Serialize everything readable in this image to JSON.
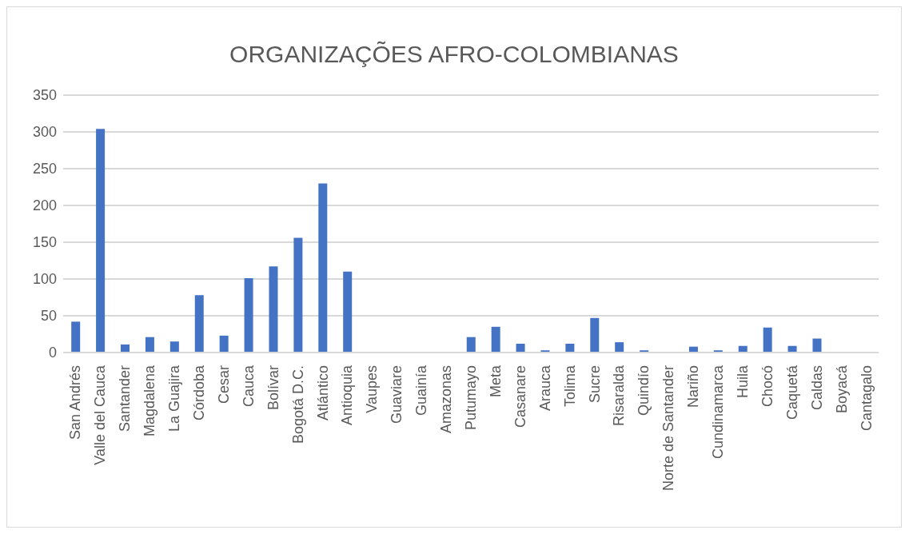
{
  "chart_data": {
    "type": "bar",
    "title": "ORGANIZAÇÕES AFRO-COLOMBIANAS",
    "categories": [
      "San Andrés",
      "Valle del Cauca",
      "Santander",
      "Magdalena",
      "La Guajira",
      "Córdoba",
      "Cesar",
      "Cauca",
      "Bolívar",
      "Bogotá D.C.",
      "Atlántico",
      "Antioquia",
      "Vaupes",
      "Guaviare",
      "Guainía",
      "Amazonas",
      "Putumayo",
      "Meta",
      "Casanare",
      "Arauca",
      "Tolima",
      "Sucre",
      "Risaralda",
      "Quindío",
      "Norte de Santander",
      "Nariño",
      "Cundinamarca",
      "Huila",
      "Chocó",
      "Caquetá",
      "Caldas",
      "Boyacá",
      "Cantagalo"
    ],
    "values": [
      42,
      304,
      11,
      21,
      15,
      78,
      23,
      101,
      117,
      156,
      230,
      110,
      0,
      0,
      0,
      0,
      21,
      35,
      12,
      3,
      12,
      47,
      14,
      3,
      0,
      8,
      3,
      9,
      34,
      9,
      19,
      0,
      0
    ],
    "color": "#4472c4",
    "ylim": [
      0,
      350
    ],
    "yticks": [
      0,
      50,
      100,
      150,
      200,
      250,
      300,
      350
    ],
    "grid": "y"
  }
}
